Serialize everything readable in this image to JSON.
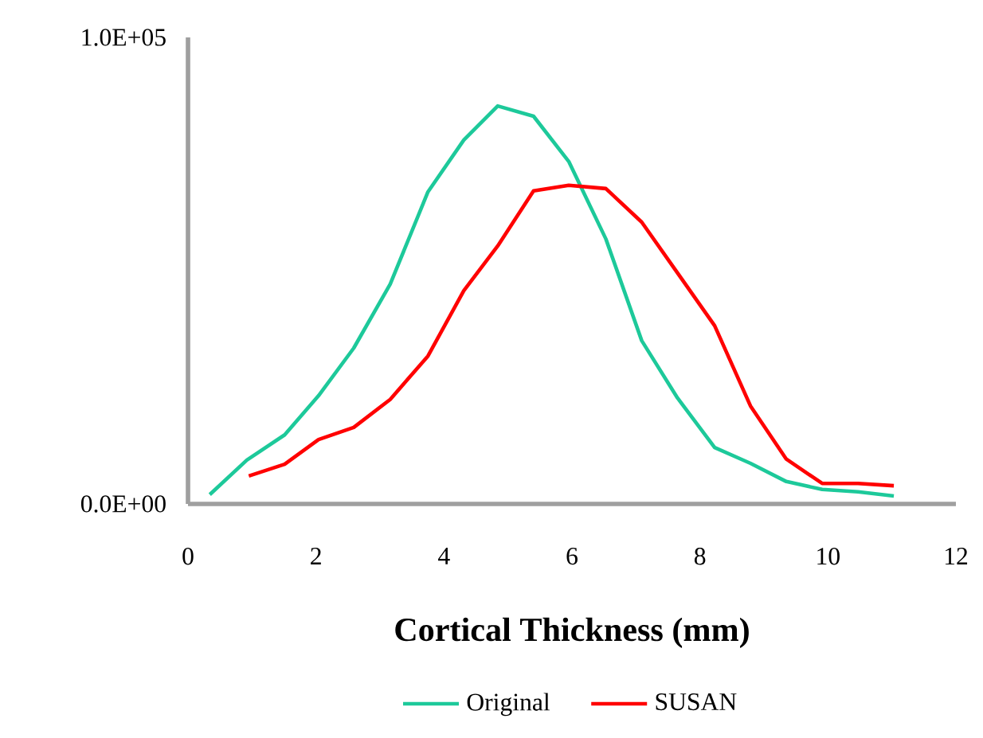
{
  "chart_data": {
    "type": "line",
    "xlabel": "Cortical Thickness (mm)",
    "xlim": [
      0,
      12
    ],
    "xticks": [
      0,
      2,
      4,
      6,
      8,
      10,
      12
    ],
    "ylim": [
      0,
      100000
    ],
    "yticks": [
      {
        "value": 0,
        "label": "0.0E+00"
      },
      {
        "value": 100000,
        "label": "1.0E+05"
      }
    ],
    "legend": "bottom",
    "series": [
      {
        "name": "Original",
        "color": "#1dc99a",
        "x": [
          0.34,
          0.92,
          1.51,
          2.04,
          2.59,
          3.16,
          3.75,
          4.31,
          4.84,
          5.4,
          5.95,
          6.53,
          7.09,
          7.65,
          8.23,
          8.79,
          9.35,
          9.91,
          10.47,
          11.03
        ],
        "values": [
          2000,
          9400,
          14800,
          23200,
          33400,
          47100,
          66900,
          78000,
          85300,
          83100,
          73400,
          56800,
          35000,
          22700,
          12100,
          8700,
          4800,
          3100,
          2600,
          1700
        ]
      },
      {
        "name": "SUSAN",
        "color": "#ff0000",
        "x": [
          0.95,
          1.51,
          2.04,
          2.59,
          3.16,
          3.75,
          4.31,
          4.84,
          5.4,
          5.95,
          6.53,
          7.09,
          7.65,
          8.23,
          8.79,
          9.35,
          9.91,
          10.47,
          11.03
        ],
        "values": [
          6000,
          8500,
          13800,
          16400,
          22400,
          31700,
          45700,
          55300,
          67100,
          68300,
          67600,
          60400,
          49500,
          38200,
          21000,
          9600,
          4400,
          4400,
          3900
        ]
      }
    ]
  }
}
